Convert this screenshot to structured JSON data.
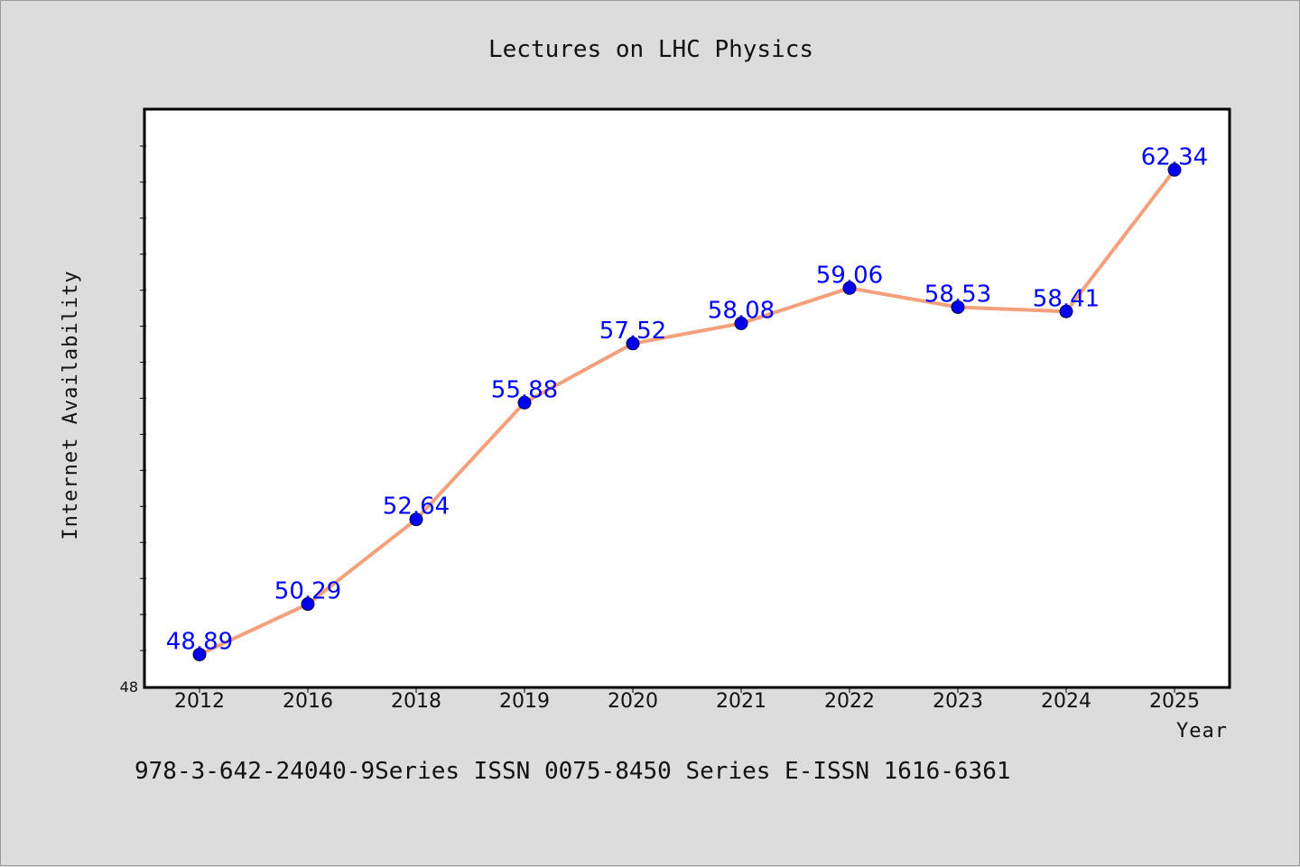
{
  "chart_data": {
    "type": "line",
    "title": "Lectures on LHC Physics",
    "xlabel": "Year",
    "ylabel": "Internet Availability",
    "categories": [
      "2012",
      "2016",
      "2018",
      "2019",
      "2020",
      "2021",
      "2022",
      "2023",
      "2024",
      "2025"
    ],
    "series": [
      {
        "values": [
          48.89,
          50.29,
          52.64,
          55.88,
          57.52,
          58.08,
          59.06,
          58.53,
          58.41,
          62.34
        ],
        "labels": [
          "48.89",
          "50.29",
          "52.64",
          "55.88",
          "57.52",
          "58.08",
          "59.06",
          "58.53",
          "58.41",
          "62.34"
        ],
        "line_color": "#f4a07c",
        "marker_color": "#0000ee"
      }
    ],
    "ylim": [
      48,
      64
    ],
    "y_min_label": "48",
    "grid": false,
    "legend": "none",
    "label_color": "#0000ff",
    "footer": "978-3-642-24040-9Series ISSN 0075-8450 Series E-ISSN 1616-6361"
  }
}
